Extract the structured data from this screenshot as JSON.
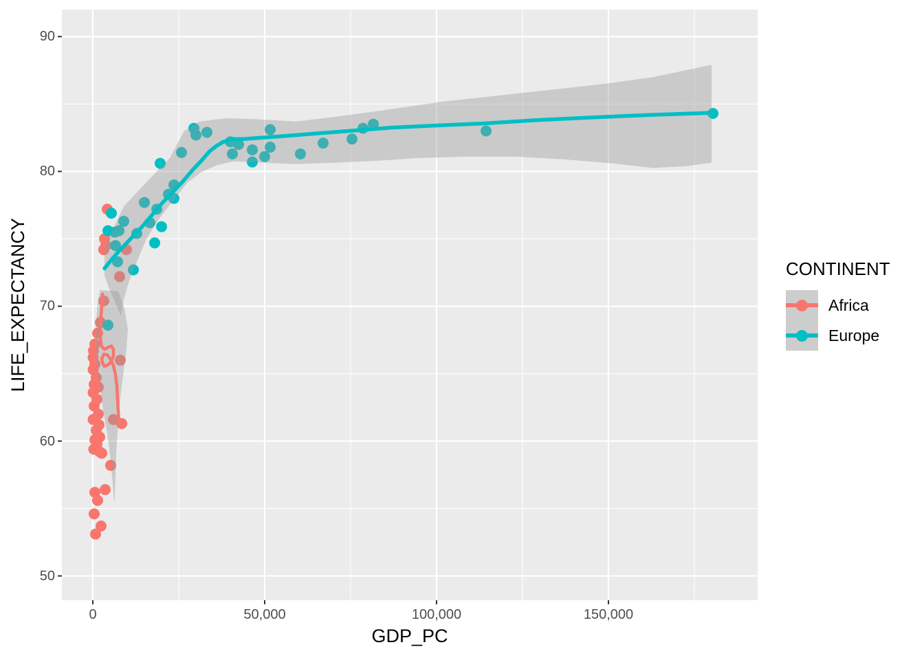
{
  "chart_data": {
    "type": "scatter",
    "xlabel": "GDP_PC",
    "ylabel": "LIFE_EXPECTANCY",
    "xlim": [
      -9000,
      193400
    ],
    "ylim": [
      48.2,
      92.0
    ],
    "grid": true,
    "x_ticks": [
      {
        "value": 0,
        "label": "0"
      },
      {
        "value": 50000,
        "label": "50,000"
      },
      {
        "value": 100000,
        "label": "100,000"
      },
      {
        "value": 150000,
        "label": "150,000"
      }
    ],
    "y_ticks": [
      {
        "value": 50,
        "label": "50"
      },
      {
        "value": 60,
        "label": "60"
      },
      {
        "value": 70,
        "label": "70"
      },
      {
        "value": 80,
        "label": "80"
      },
      {
        "value": 90,
        "label": "90"
      }
    ],
    "x_minor_ticks": [
      25000,
      75000,
      125000,
      175000
    ],
    "y_minor_ticks": [
      55,
      65,
      75,
      85
    ],
    "legend": {
      "title": "CONTINENT",
      "position": "right",
      "entries": [
        {
          "label": "Africa",
          "color": "#F8766D"
        },
        {
          "label": "Europe",
          "color": "#00BFC4"
        }
      ]
    },
    "style": {
      "panel_background": "#EBEBEB",
      "grid_color": "#FFFFFF",
      "ribbon_fill": "rgba(153,153,153,0.4)",
      "tick_color": "#333333",
      "tick_label_color": "#4D4D4D",
      "legend_key_fill": "#CDCDCD",
      "point_radius": 8,
      "line_width": 5.5
    },
    "series": [
      {
        "name": "Africa",
        "color": "#F8766D",
        "points": [
          [
            4200,
            77.2
          ],
          [
            3400,
            75.0
          ],
          [
            3800,
            74.5
          ],
          [
            3200,
            74.2
          ],
          [
            9800,
            74.2
          ],
          [
            7800,
            72.2
          ],
          [
            3200,
            70.4
          ],
          [
            2200,
            68.8
          ],
          [
            1400,
            68.0
          ],
          [
            600,
            67.2
          ],
          [
            200,
            66.7
          ],
          [
            100,
            66.2
          ],
          [
            8000,
            66.0
          ],
          [
            600,
            65.7
          ],
          [
            100,
            65.3
          ],
          [
            1000,
            64.7
          ],
          [
            400,
            64.2
          ],
          [
            1600,
            64.0
          ],
          [
            100,
            63.6
          ],
          [
            1200,
            63.1
          ],
          [
            400,
            62.6
          ],
          [
            1600,
            62.0
          ],
          [
            100,
            61.6
          ],
          [
            6000,
            61.6
          ],
          [
            8400,
            61.3
          ],
          [
            1800,
            61.2
          ],
          [
            1000,
            60.8
          ],
          [
            2000,
            60.3
          ],
          [
            600,
            60.1
          ],
          [
            1200,
            59.8
          ],
          [
            300,
            59.4
          ],
          [
            2000,
            59.2
          ],
          [
            2600,
            59.1
          ],
          [
            5200,
            58.2
          ],
          [
            3600,
            56.4
          ],
          [
            600,
            56.2
          ],
          [
            1400,
            55.6
          ],
          [
            400,
            54.6
          ],
          [
            2400,
            53.7
          ],
          [
            800,
            53.1
          ]
        ],
        "smooth_line": [
          [
            2800,
            70.9
          ],
          [
            2500,
            69.6
          ],
          [
            2200,
            68.6
          ],
          [
            2200,
            67.6
          ],
          [
            2600,
            67.0
          ],
          [
            3400,
            66.8
          ],
          [
            4400,
            66.95
          ],
          [
            5400,
            67.05
          ],
          [
            6000,
            66.8
          ],
          [
            6000,
            66.3
          ],
          [
            5400,
            65.9
          ],
          [
            4400,
            65.65
          ],
          [
            3400,
            65.55
          ],
          [
            2800,
            65.8
          ],
          [
            2600,
            66.1
          ],
          [
            3200,
            66.45
          ],
          [
            4200,
            66.4
          ],
          [
            5200,
            66.05
          ],
          [
            6000,
            65.6
          ],
          [
            6600,
            64.9
          ],
          [
            7000,
            64.1
          ],
          [
            7200,
            63.1
          ],
          [
            7400,
            62.2
          ],
          [
            7600,
            61.4
          ]
        ],
        "ribbon_polygon": [
          [
            2000,
            71.2
          ],
          [
            7400,
            71.1
          ],
          [
            9200,
            69.85
          ],
          [
            10200,
            68.3
          ],
          [
            9800,
            66.8
          ],
          [
            9000,
            65.25
          ],
          [
            8200,
            63.7
          ],
          [
            7600,
            62.2
          ],
          [
            7200,
            60.65
          ],
          [
            6800,
            59.1
          ],
          [
            6600,
            57.4
          ],
          [
            6400,
            55.7
          ],
          [
            6200,
            55.5
          ],
          [
            5600,
            57.4
          ],
          [
            5000,
            59.0
          ],
          [
            4200,
            60.55
          ],
          [
            3200,
            62.0
          ],
          [
            2400,
            63.3
          ],
          [
            1600,
            64.75
          ],
          [
            1000,
            66.15
          ],
          [
            800,
            67.6
          ],
          [
            1000,
            69.0
          ],
          [
            1400,
            70.25
          ],
          [
            2000,
            71.05
          ]
        ]
      },
      {
        "name": "Europe",
        "color": "#00BFC4",
        "points": [
          [
            5400,
            76.9
          ],
          [
            9000,
            76.3
          ],
          [
            4400,
            75.6
          ],
          [
            6400,
            75.5
          ],
          [
            7600,
            75.6
          ],
          [
            12800,
            75.4
          ],
          [
            6600,
            74.5
          ],
          [
            7200,
            73.3
          ],
          [
            11800,
            72.7
          ],
          [
            4400,
            68.6
          ],
          [
            15000,
            77.7
          ],
          [
            18600,
            77.2
          ],
          [
            16600,
            76.2
          ],
          [
            20000,
            75.9
          ],
          [
            18000,
            74.7
          ],
          [
            19600,
            80.6
          ],
          [
            22000,
            78.3
          ],
          [
            23600,
            78.0
          ],
          [
            23600,
            79.0
          ],
          [
            25800,
            81.4
          ],
          [
            29400,
            83.2
          ],
          [
            30000,
            82.7
          ],
          [
            33200,
            82.9
          ],
          [
            40000,
            82.2
          ],
          [
            42400,
            82.0
          ],
          [
            40600,
            81.3
          ],
          [
            46400,
            81.6
          ],
          [
            46400,
            80.7
          ],
          [
            50000,
            81.1
          ],
          [
            51600,
            83.1
          ],
          [
            51600,
            81.8
          ],
          [
            60400,
            81.3
          ],
          [
            67000,
            82.1
          ],
          [
            75400,
            82.4
          ],
          [
            78600,
            83.2
          ],
          [
            81600,
            83.5
          ],
          [
            114400,
            83.0
          ],
          [
            180400,
            84.3
          ]
        ],
        "smooth_line": [
          [
            3400,
            72.8
          ],
          [
            5600,
            73.5
          ],
          [
            8000,
            74.2
          ],
          [
            11000,
            75.0
          ],
          [
            14000,
            75.8
          ],
          [
            17000,
            76.7
          ],
          [
            20000,
            77.6
          ],
          [
            23000,
            78.4
          ],
          [
            26000,
            79.2
          ],
          [
            29000,
            80.1
          ],
          [
            31600,
            80.8
          ],
          [
            34000,
            81.5
          ],
          [
            36000,
            81.9
          ],
          [
            38000,
            82.2
          ],
          [
            40600,
            82.4
          ],
          [
            44000,
            82.4
          ],
          [
            49000,
            82.5
          ],
          [
            57000,
            82.65
          ],
          [
            67000,
            82.85
          ],
          [
            77000,
            83.05
          ],
          [
            87000,
            83.25
          ],
          [
            99000,
            83.4
          ],
          [
            113000,
            83.55
          ],
          [
            129000,
            83.8
          ],
          [
            145000,
            84.0
          ],
          [
            163000,
            84.2
          ],
          [
            180400,
            84.35
          ]
        ],
        "ribbon_upper": [
          [
            3400,
            74.4
          ],
          [
            9000,
            77.4
          ],
          [
            15600,
            79.2
          ],
          [
            22400,
            81.0
          ],
          [
            26600,
            83.0
          ],
          [
            31000,
            83.7
          ],
          [
            39000,
            83.95
          ],
          [
            49000,
            83.85
          ],
          [
            59000,
            83.7
          ],
          [
            69000,
            84.0
          ],
          [
            85000,
            84.55
          ],
          [
            101000,
            85.15
          ],
          [
            117000,
            85.6
          ],
          [
            133000,
            86.05
          ],
          [
            149000,
            86.5
          ],
          [
            163000,
            87.0
          ],
          [
            180000,
            87.9
          ]
        ],
        "ribbon_lower": [
          [
            3400,
            72.3
          ],
          [
            4600,
            71.4
          ],
          [
            6200,
            70.5
          ],
          [
            7600,
            69.6
          ],
          [
            8200,
            69.3
          ],
          [
            9000,
            70.5
          ],
          [
            10600,
            71.9
          ],
          [
            13000,
            73.4
          ],
          [
            15600,
            75.0
          ],
          [
            19600,
            76.6
          ],
          [
            23600,
            77.9
          ],
          [
            27600,
            79.2
          ],
          [
            31600,
            79.95
          ],
          [
            36000,
            80.45
          ],
          [
            41000,
            80.75
          ],
          [
            49000,
            80.65
          ],
          [
            59000,
            80.55
          ],
          [
            71000,
            80.65
          ],
          [
            83000,
            80.8
          ],
          [
            95000,
            81.0
          ],
          [
            109000,
            81.1
          ],
          [
            123000,
            81.1
          ],
          [
            137000,
            80.9
          ],
          [
            151000,
            80.6
          ],
          [
            163000,
            80.25
          ],
          [
            173000,
            80.4
          ],
          [
            180000,
            80.65
          ]
        ]
      }
    ]
  }
}
